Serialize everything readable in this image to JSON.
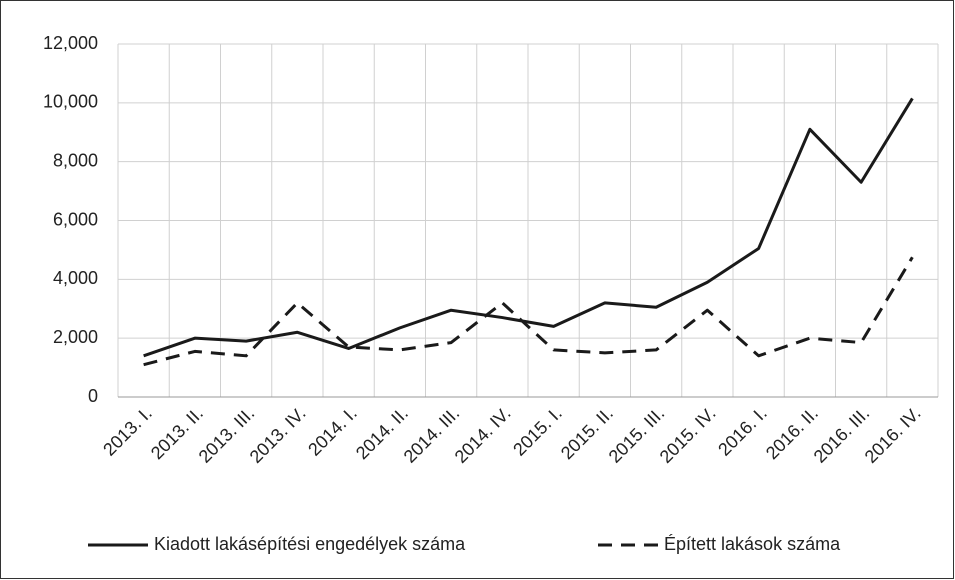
{
  "chart_data": {
    "type": "line",
    "categories": [
      "2013. I.",
      "2013. II.",
      "2013. III.",
      "2013. IV.",
      "2014. I.",
      "2014. II.",
      "2014. III.",
      "2014. IV.",
      "2015. I.",
      "2015. II.",
      "2015. III.",
      "2015. IV.",
      "2016. I.",
      "2016. II.",
      "2016. III.",
      "2016. IV."
    ],
    "series": [
      {
        "name": "Kiadott lakásépítési engedélyek száma",
        "color": "#1a1a1a",
        "dash": "solid",
        "values": [
          1400,
          2000,
          1900,
          2200,
          1650,
          2350,
          2950,
          2700,
          2400,
          3200,
          3050,
          3900,
          5050,
          9100,
          7300,
          10150
        ]
      },
      {
        "name": "Épített lakások száma",
        "color": "#1a1a1a",
        "dash": "dashed",
        "values": [
          1100,
          1550,
          1400,
          3200,
          1700,
          1600,
          1850,
          3200,
          1600,
          1500,
          1600,
          2950,
          1400,
          2000,
          1850,
          4750
        ]
      }
    ],
    "ylim": [
      0,
      12000
    ],
    "yticks": [
      0,
      {
        "value": 2000,
        "label": "2,000"
      },
      {
        "value": 4000,
        "label": "4,000"
      },
      {
        "value": 6000,
        "label": "6,000"
      },
      {
        "value": 8000,
        "label": "8,000"
      },
      {
        "value": 10000,
        "label": "10,000"
      },
      {
        "value": 12000,
        "label": "12,000"
      }
    ],
    "grid": true,
    "legend": "bottom"
  }
}
